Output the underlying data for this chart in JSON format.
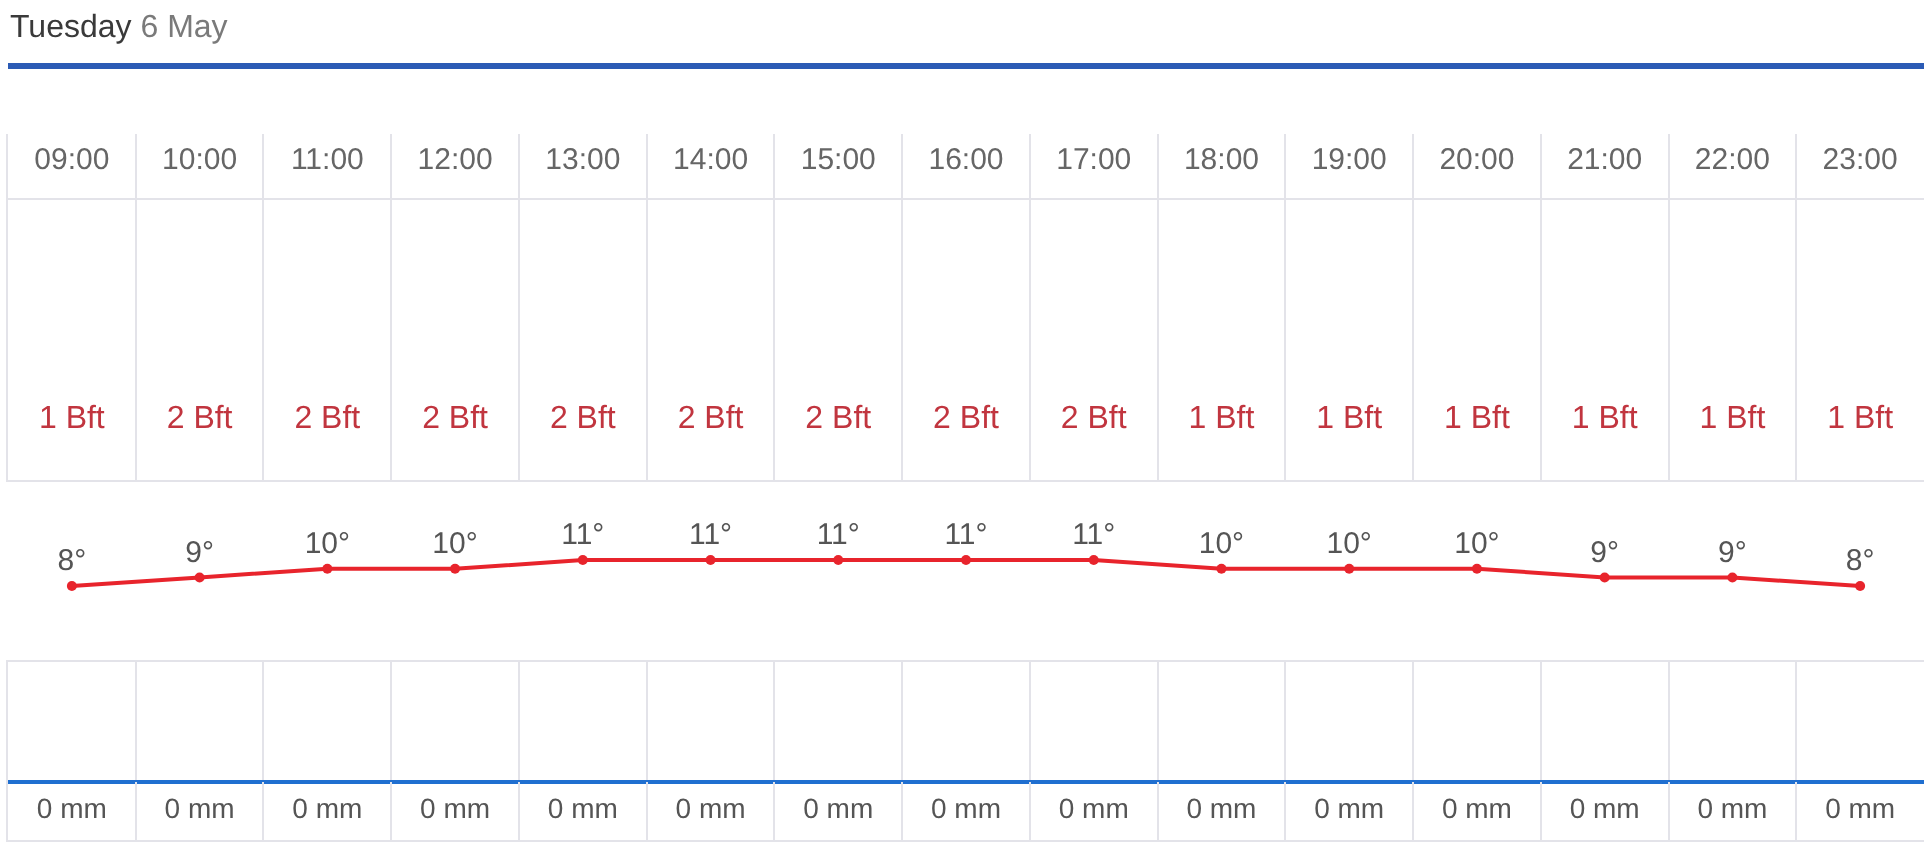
{
  "chart_data": [
    {
      "type": "line",
      "title": "Tuesday 6 May",
      "categories": [
        "09:00",
        "10:00",
        "11:00",
        "12:00",
        "13:00",
        "14:00",
        "15:00",
        "16:00",
        "17:00",
        "18:00",
        "19:00",
        "20:00",
        "21:00",
        "22:00",
        "23:00"
      ],
      "values": [
        8,
        9,
        10,
        10,
        11,
        11,
        11,
        11,
        11,
        10,
        10,
        10,
        9,
        9,
        8
      ],
      "value_labels": [
        "8°",
        "9°",
        "10°",
        "10°",
        "11°",
        "11°",
        "11°",
        "11°",
        "11°",
        "10°",
        "10°",
        "10°",
        "9°",
        "9°",
        "8°"
      ],
      "color": "#e8242c",
      "marker": "circle",
      "grid": "x",
      "tick_labels": "x"
    },
    {
      "type": "other",
      "value_labels": [
        "1 Bft",
        "2 Bft",
        "2 Bft",
        "2 Bft",
        "2 Bft",
        "2 Bft",
        "2 Bft",
        "2 Bft",
        "2 Bft",
        "1 Bft",
        "1 Bft",
        "1 Bft",
        "1 Bft",
        "1 Bft",
        "1 Bft"
      ],
      "color": "#c1353f"
    },
    {
      "type": "other",
      "value_labels": [
        "0 mm",
        "0 mm",
        "0 mm",
        "0 mm",
        "0 mm",
        "0 mm",
        "0 mm",
        "0 mm",
        "0 mm",
        "0 mm",
        "0 mm",
        "0 mm",
        "0 mm",
        "0 mm",
        "0 mm"
      ]
    }
  ]
}
